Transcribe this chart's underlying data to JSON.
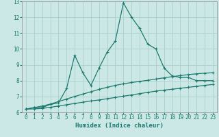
{
  "xlabel": "Humidex (Indice chaleur)",
  "xlim": [
    -0.5,
    23.5
  ],
  "ylim": [
    6,
    13
  ],
  "yticks": [
    6,
    7,
    8,
    9,
    10,
    11,
    12,
    13
  ],
  "xticks": [
    0,
    1,
    2,
    3,
    4,
    5,
    6,
    7,
    8,
    9,
    10,
    11,
    12,
    13,
    14,
    15,
    16,
    17,
    18,
    19,
    20,
    21,
    22,
    23
  ],
  "bg_color": "#cce8e6",
  "grid_color": "#aacfcc",
  "line_color": "#1a7a6e",
  "line1_x": [
    0,
    1,
    2,
    3,
    4,
    5,
    6,
    7,
    8,
    9,
    10,
    11,
    12,
    13,
    14,
    15,
    16,
    17,
    18,
    19,
    20,
    21,
    22,
    23
  ],
  "line1_y": [
    6.2,
    6.3,
    6.3,
    6.5,
    6.6,
    7.5,
    9.6,
    8.5,
    7.7,
    8.8,
    9.8,
    10.5,
    12.9,
    12.0,
    11.3,
    10.3,
    10.0,
    8.8,
    8.3,
    8.2,
    8.2,
    8.0,
    8.0,
    8.0
  ],
  "line2_x": [
    0,
    1,
    2,
    3,
    4,
    5,
    6,
    7,
    8,
    9,
    10,
    11,
    12,
    13,
    14,
    15,
    16,
    17,
    18,
    19,
    20,
    21,
    22,
    23
  ],
  "line2_y": [
    6.2,
    6.3,
    6.4,
    6.52,
    6.68,
    6.84,
    7.0,
    7.15,
    7.3,
    7.45,
    7.58,
    7.7,
    7.8,
    7.88,
    7.95,
    8.02,
    8.1,
    8.18,
    8.25,
    8.32,
    8.38,
    8.43,
    8.47,
    8.5
  ],
  "line3_x": [
    0,
    1,
    2,
    3,
    4,
    5,
    6,
    7,
    8,
    9,
    10,
    11,
    12,
    13,
    14,
    15,
    16,
    17,
    18,
    19,
    20,
    21,
    22,
    23
  ],
  "line3_y": [
    6.2,
    6.22,
    6.25,
    6.32,
    6.4,
    6.48,
    6.56,
    6.64,
    6.72,
    6.78,
    6.86,
    6.94,
    7.02,
    7.1,
    7.18,
    7.26,
    7.34,
    7.4,
    7.46,
    7.52,
    7.58,
    7.64,
    7.7,
    7.76
  ],
  "markersize": 3,
  "linewidth": 0.9,
  "tick_fontsize": 5.5,
  "xlabel_fontsize": 6.5
}
